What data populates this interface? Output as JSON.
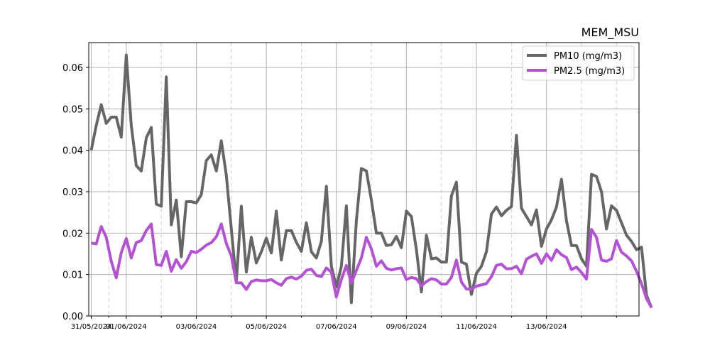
{
  "chart_data": {
    "type": "line",
    "title": "MEM_MSU",
    "xlabel": "",
    "ylabel": "",
    "ylim": [
      0,
      0.066
    ],
    "yticks": [
      0.0,
      0.01,
      0.02,
      0.03,
      0.04,
      0.05,
      0.06
    ],
    "ytick_labels": [
      "0.00",
      "0.01",
      "0.02",
      "0.03",
      "0.04",
      "0.05",
      "0.06"
    ],
    "xlim": [
      -0.5,
      109.5
    ],
    "x_tick_positions": [
      0,
      7,
      21,
      35,
      49,
      63,
      77,
      91
    ],
    "x_tick_labels": [
      "31/05/2024",
      "01/06/2024",
      "03/06/2024",
      "05/06/2024",
      "07/06/2024",
      "09/06/2024",
      "11/06/2024",
      "13/06/2024"
    ],
    "minor_tick_positions": [
      3.5,
      14,
      28,
      42,
      56,
      70,
      84,
      98,
      105
    ],
    "grid": true,
    "legend_position": "top-right",
    "series": [
      {
        "name": "PM10 (mg/m3)",
        "color": "#666666",
        "values": [
          0.04,
          0.046,
          0.051,
          0.0465,
          0.048,
          0.048,
          0.0432,
          0.063,
          0.046,
          0.0363,
          0.035,
          0.043,
          0.0455,
          0.027,
          0.0265,
          0.0577,
          0.022,
          0.028,
          0.0143,
          0.0276,
          0.0276,
          0.0273,
          0.0293,
          0.0375,
          0.0389,
          0.035,
          0.0423,
          0.034,
          0.021,
          0.0082,
          0.0265,
          0.0106,
          0.019,
          0.0128,
          0.0155,
          0.0188,
          0.0152,
          0.0253,
          0.0135,
          0.0206,
          0.0206,
          0.0178,
          0.0156,
          0.0225,
          0.0155,
          0.014,
          0.018,
          0.0313,
          0.012,
          0.007,
          0.012,
          0.0266,
          0.0032,
          0.023,
          0.0356,
          0.035,
          0.028,
          0.02,
          0.02,
          0.017,
          0.0172,
          0.0192,
          0.0165,
          0.0253,
          0.024,
          0.016,
          0.0058,
          0.0195,
          0.0138,
          0.014,
          0.013,
          0.013,
          0.029,
          0.0323,
          0.013,
          0.0125,
          0.0052,
          0.0103,
          0.012,
          0.0155,
          0.0246,
          0.0263,
          0.0242,
          0.0255,
          0.0264,
          0.0436,
          0.026,
          0.024,
          0.022,
          0.0256,
          0.0168,
          0.021,
          0.0232,
          0.0263,
          0.033,
          0.023,
          0.017,
          0.017,
          0.0138,
          0.012,
          0.0342,
          0.0337,
          0.03,
          0.021,
          0.0266,
          0.0255,
          0.0225,
          0.0195,
          0.018,
          0.016,
          0.0166,
          0.005,
          0.002
        ]
      },
      {
        "name": "PM2.5 (mg/m3)",
        "color": "#b452d4",
        "values": [
          0.0176,
          0.0174,
          0.0216,
          0.019,
          0.0132,
          0.0092,
          0.0153,
          0.0187,
          0.014,
          0.0177,
          0.0182,
          0.0206,
          0.0222,
          0.0124,
          0.0122,
          0.0156,
          0.0108,
          0.0136,
          0.0115,
          0.0131,
          0.0156,
          0.0153,
          0.0161,
          0.0171,
          0.0177,
          0.0191,
          0.0222,
          0.0175,
          0.0145,
          0.008,
          0.008,
          0.0064,
          0.0083,
          0.0087,
          0.0085,
          0.0085,
          0.0088,
          0.008,
          0.0074,
          0.009,
          0.0094,
          0.0089,
          0.0096,
          0.011,
          0.0113,
          0.0098,
          0.0095,
          0.0116,
          0.0106,
          0.0046,
          0.0088,
          0.0122,
          0.0079,
          0.011,
          0.014,
          0.019,
          0.0162,
          0.012,
          0.0133,
          0.0115,
          0.0111,
          0.0114,
          0.0116,
          0.0088,
          0.0093,
          0.009,
          0.0073,
          0.0083,
          0.009,
          0.0087,
          0.0077,
          0.0077,
          0.0093,
          0.0135,
          0.0082,
          0.0065,
          0.0065,
          0.0072,
          0.0075,
          0.0078,
          0.0095,
          0.0122,
          0.0125,
          0.0114,
          0.0114,
          0.012,
          0.0102,
          0.0137,
          0.0144,
          0.015,
          0.0127,
          0.015,
          0.0134,
          0.016,
          0.0148,
          0.0141,
          0.0112,
          0.0118,
          0.0105,
          0.0089,
          0.0209,
          0.019,
          0.0135,
          0.0132,
          0.0138,
          0.0182,
          0.0154,
          0.0145,
          0.0133,
          0.0108,
          0.0078,
          0.0042,
          0.002
        ]
      }
    ]
  }
}
